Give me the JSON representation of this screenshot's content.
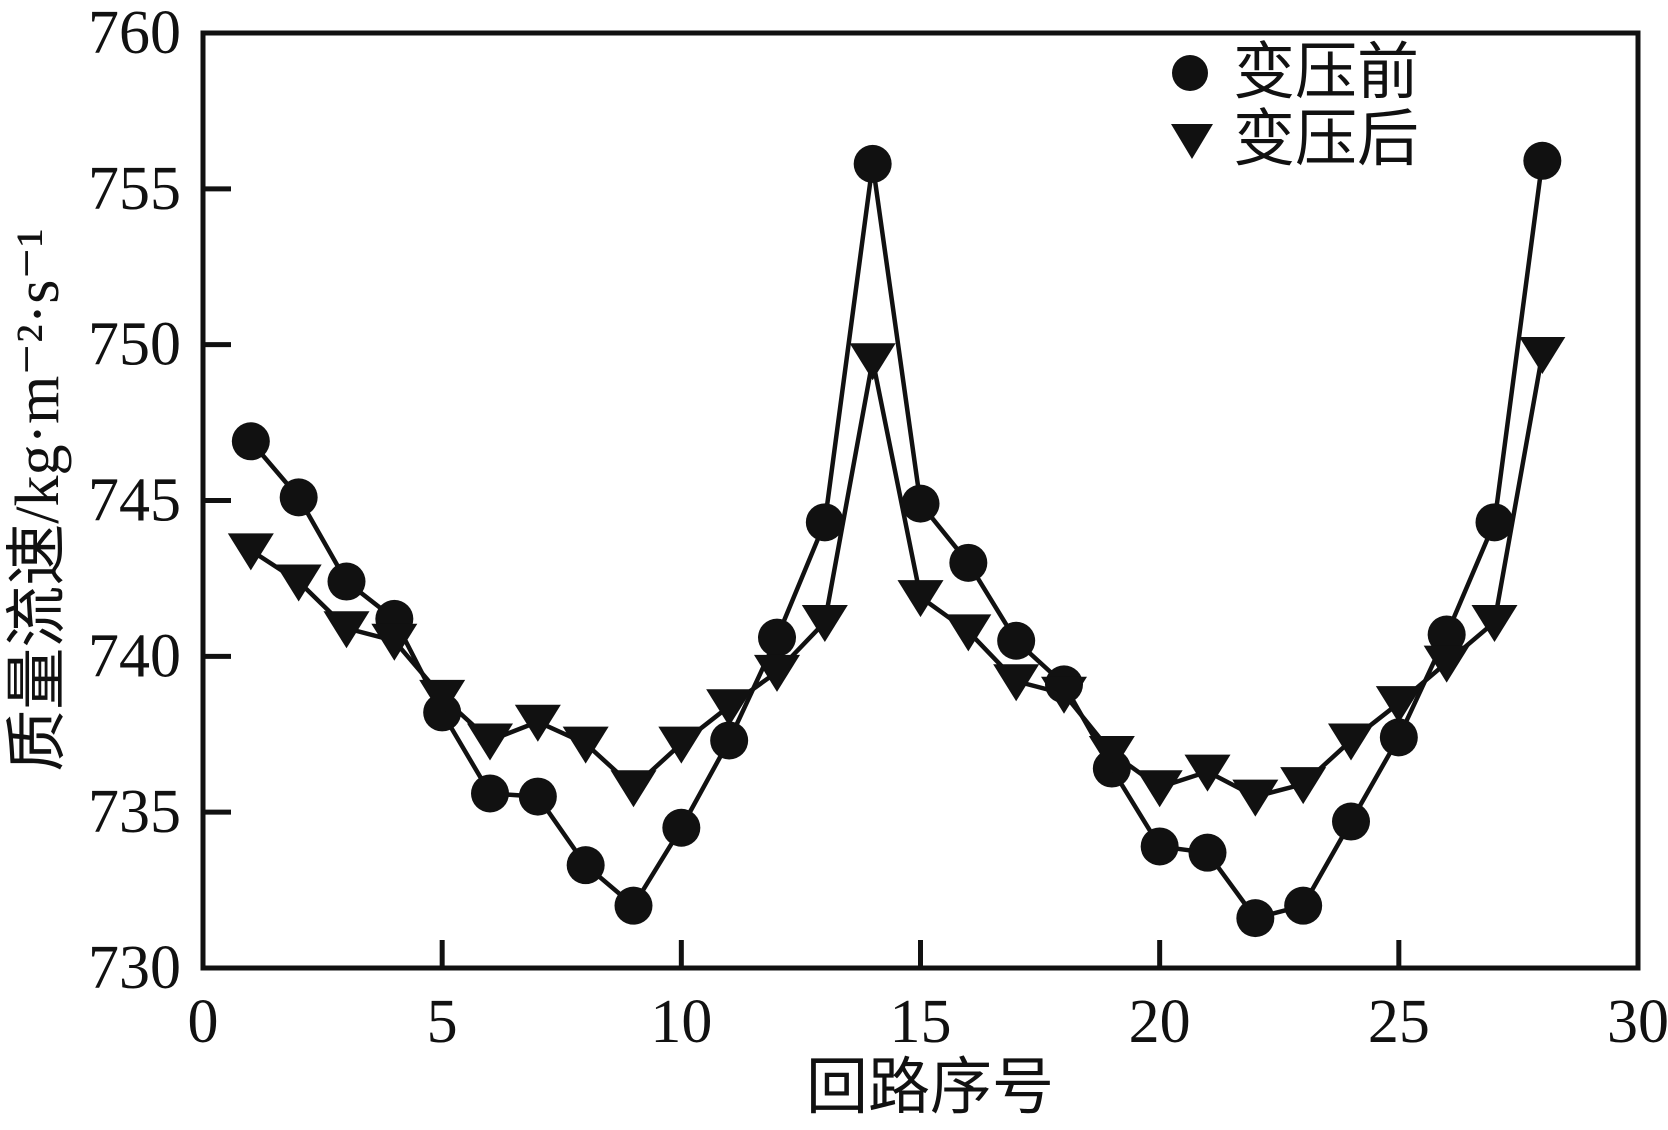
{
  "figure": {
    "background_color": "#ffffff",
    "line_color": "#111111"
  },
  "legend": {
    "items": [
      {
        "label": "变压前",
        "marker": "filled-circle-marker"
      },
      {
        "label": "变压后",
        "marker": "filled-triangle-down-marker"
      }
    ]
  },
  "chart_data": {
    "type": "line",
    "title": "",
    "xlabel": "回路序号",
    "ylabel": "质量流速/kg·m⁻²·s⁻¹",
    "xlim": [
      0,
      30
    ],
    "ylim": [
      730,
      760
    ],
    "x_ticks": [
      0,
      5,
      10,
      15,
      20,
      25,
      30
    ],
    "y_ticks": [
      730,
      735,
      740,
      745,
      750,
      755,
      760
    ],
    "grid": false,
    "legend_position": "top-right-inside",
    "x": [
      1,
      2,
      3,
      4,
      5,
      6,
      7,
      8,
      9,
      10,
      11,
      12,
      13,
      14,
      15,
      16,
      17,
      18,
      19,
      20,
      21,
      22,
      23,
      24,
      25,
      26,
      27,
      28
    ],
    "series": [
      {
        "name": "变压前",
        "marker": "circle",
        "values": [
          746.9,
          745.1,
          742.4,
          741.2,
          738.2,
          735.6,
          735.5,
          733.3,
          732.0,
          734.5,
          737.3,
          740.6,
          744.3,
          755.8,
          744.9,
          743.0,
          740.5,
          739.1,
          736.4,
          733.9,
          733.7,
          731.6,
          732.0,
          734.7,
          737.4,
          740.7,
          744.3,
          755.9
        ]
      },
      {
        "name": "变压后",
        "marker": "triangle-down",
        "values": [
          743.4,
          742.4,
          740.9,
          740.5,
          738.7,
          737.3,
          737.9,
          737.2,
          735.8,
          737.2,
          738.4,
          739.5,
          741.1,
          749.5,
          741.9,
          740.8,
          739.2,
          738.8,
          736.9,
          735.8,
          736.3,
          735.5,
          735.9,
          737.3,
          738.5,
          739.8,
          741.1,
          749.7
        ]
      }
    ]
  }
}
